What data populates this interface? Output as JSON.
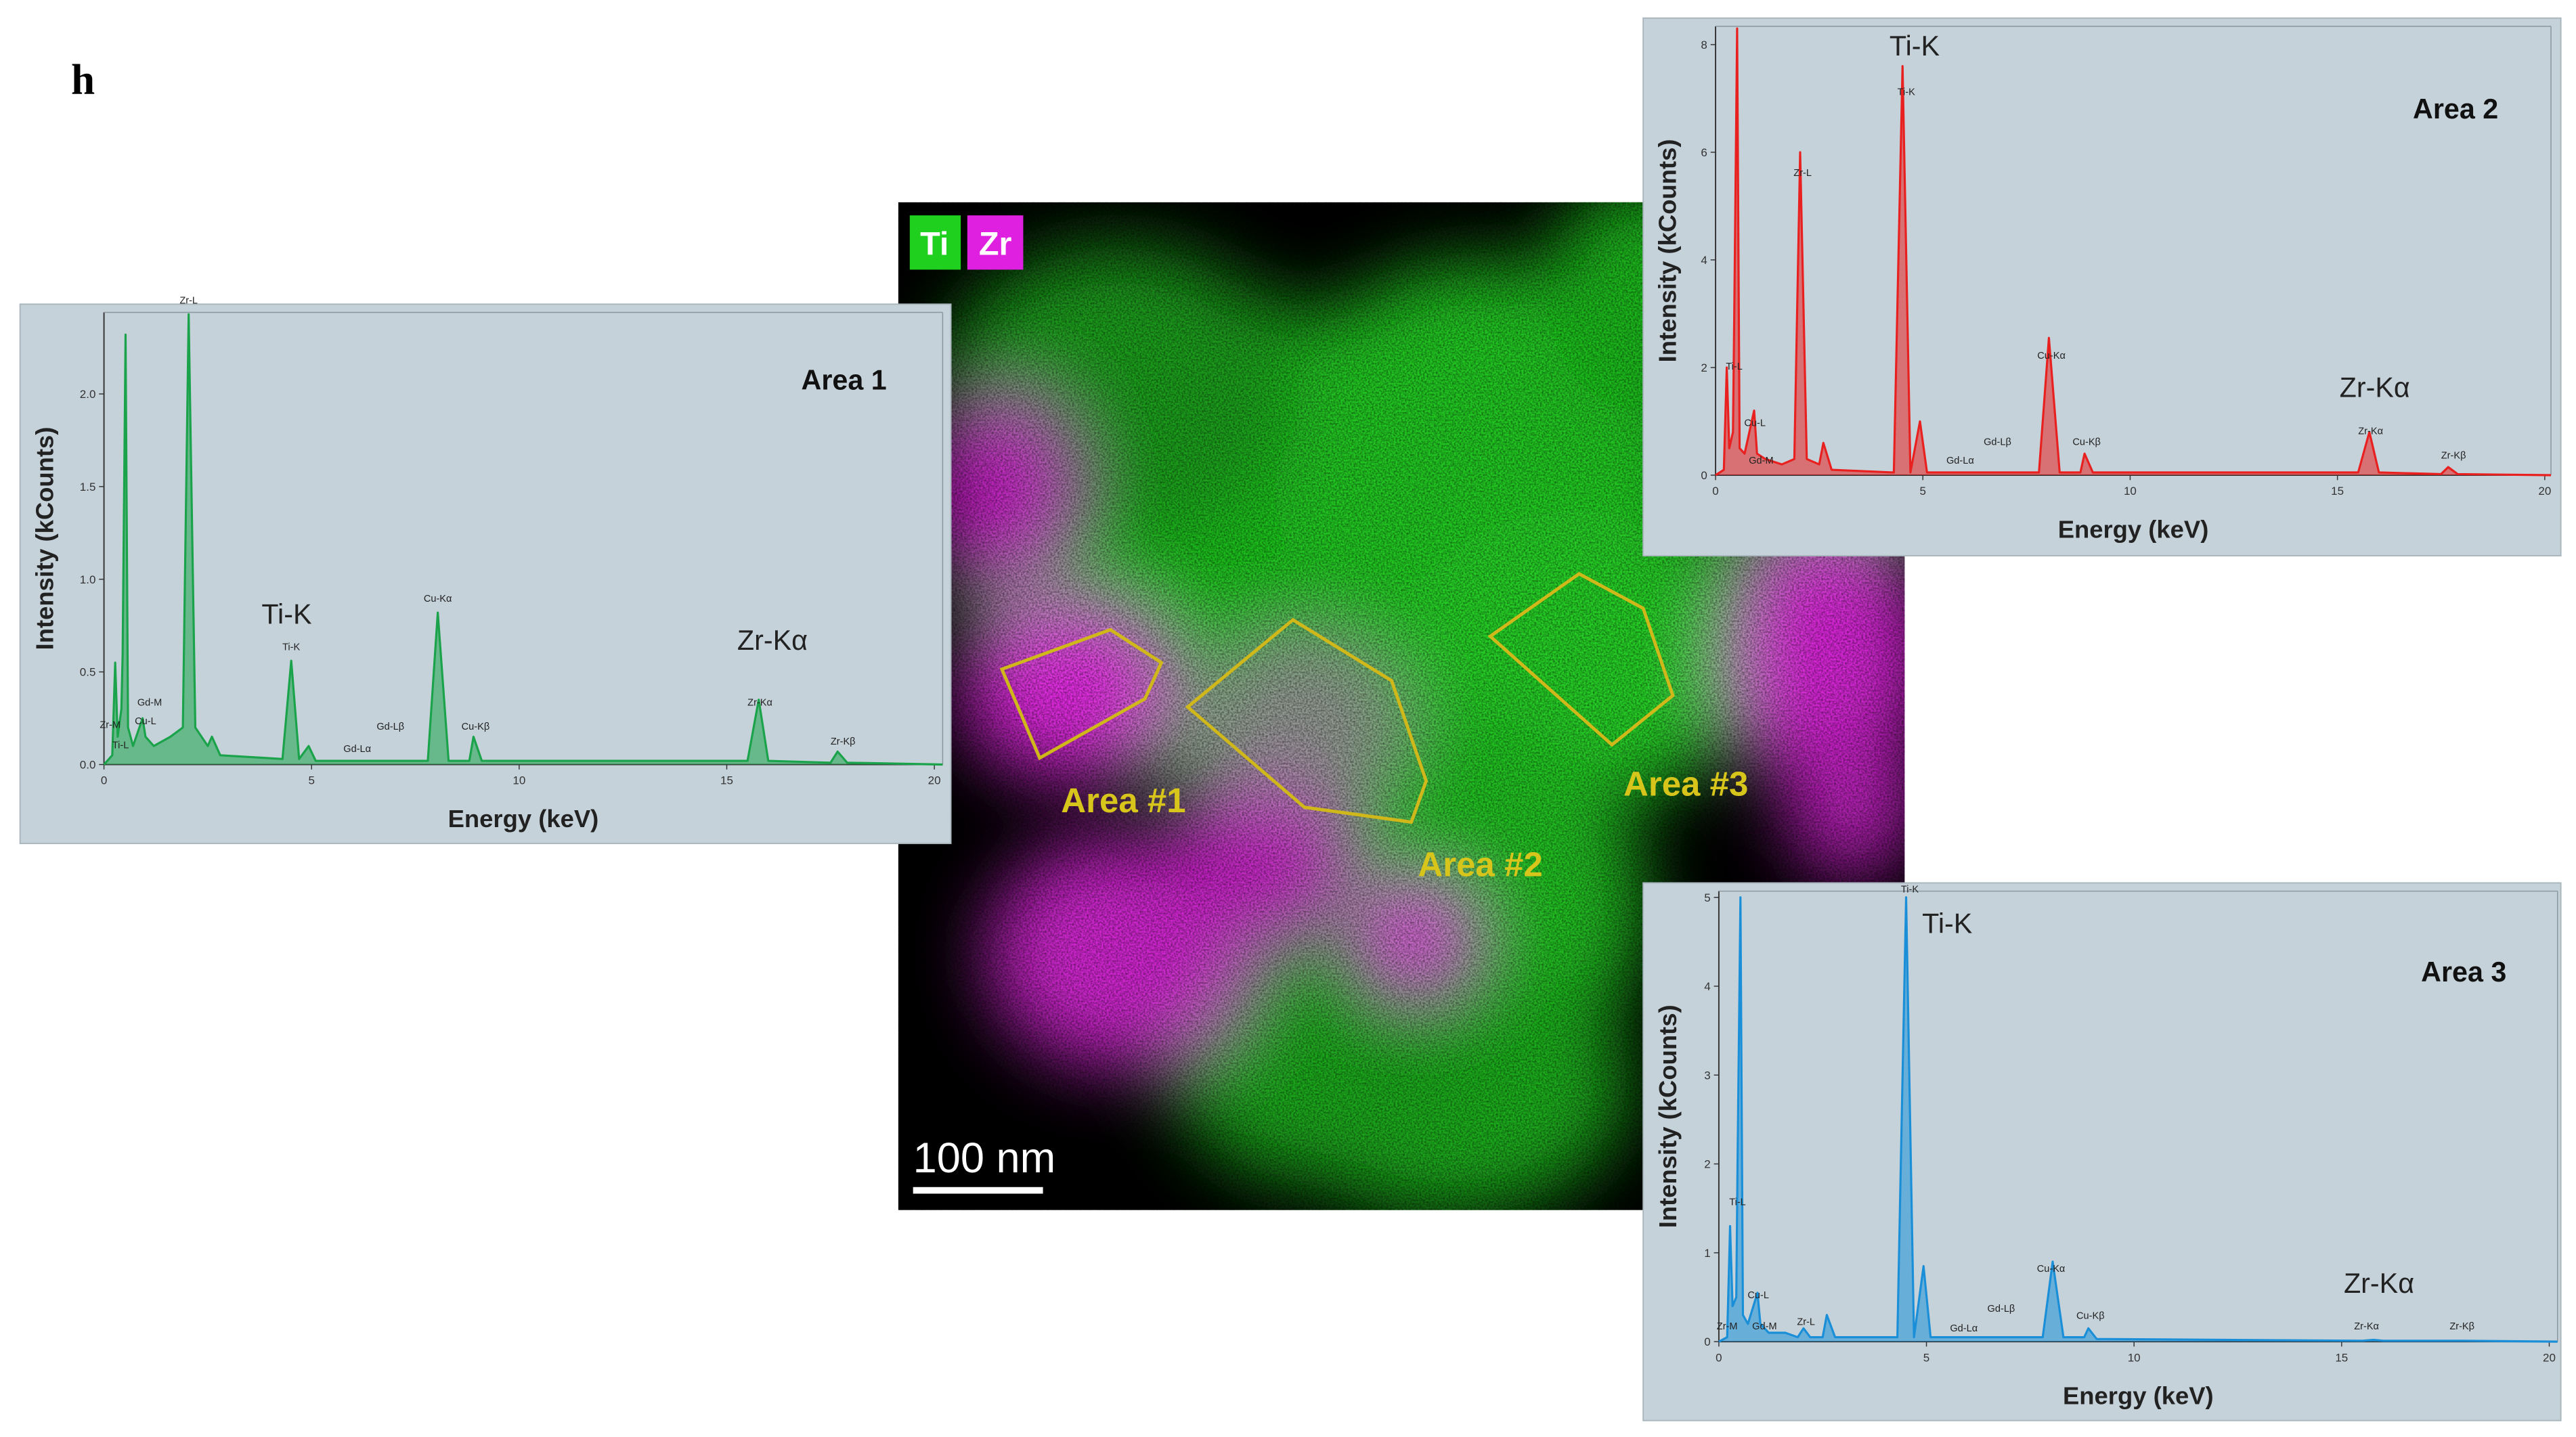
{
  "panel_label": "h",
  "map": {
    "legend": [
      "Ti",
      "Zr"
    ],
    "regions": [
      "Area #1",
      "Area #2",
      "Area #3"
    ],
    "scale_bar": "100 nm"
  },
  "chart_data": [
    {
      "type": "line",
      "title": "Area 1",
      "xlabel": "Energy (keV)",
      "ylabel": "Intensity (kCounts)",
      "color": "#1aa34a",
      "x": [
        0,
        0.2,
        0.27,
        0.33,
        0.42,
        0.45,
        0.52,
        0.58,
        0.7,
        0.93,
        1.0,
        1.2,
        1.6,
        1.9,
        2.04,
        2.2,
        2.5,
        2.6,
        2.8,
        4.3,
        4.51,
        4.7,
        4.93,
        5.1,
        7.8,
        8.04,
        8.3,
        8.8,
        8.9,
        9.1,
        15.5,
        15.77,
        16.0,
        17.5,
        17.67,
        17.9,
        20.2
      ],
      "values": [
        0,
        0.05,
        0.55,
        0.15,
        0.3,
        0.6,
        2.32,
        0.2,
        0.1,
        0.25,
        0.15,
        0.1,
        0.15,
        0.2,
        2.43,
        0.2,
        0.1,
        0.15,
        0.05,
        0.03,
        0.56,
        0.03,
        0.1,
        0.02,
        0.02,
        0.82,
        0.02,
        0.02,
        0.15,
        0.02,
        0.02,
        0.35,
        0.02,
        0.01,
        0.07,
        0.01,
        0
      ],
      "xlim": [
        0,
        20.2
      ],
      "xticks": [
        0,
        5,
        10,
        15,
        20
      ],
      "ylim": [
        0,
        2.44
      ],
      "yticks": [
        {
          "value": 0,
          "label": "0.0"
        },
        {
          "value": 0.5,
          "label": "0.5"
        },
        {
          "value": 1,
          "label": "1.0"
        },
        {
          "value": 1.5,
          "label": "1.5"
        },
        {
          "value": 2,
          "label": "2.0"
        }
      ],
      "annotations": [
        "Zr-L",
        "Ti-K",
        "Cu-Kα",
        "Gd-Lβ",
        "Gd-Lα",
        "Cu-Kβ",
        "Zr-Kα",
        "Zr-Kβ",
        "Gd-M",
        "Cu-L",
        "Ti-L",
        "Zr-M"
      ],
      "callouts": [
        "Ti-K",
        "Zr-Kα"
      ]
    },
    {
      "type": "line",
      "title": "Area 2",
      "xlabel": "Energy (keV)",
      "ylabel": "Intensity (kCounts)",
      "color": "#e8201f",
      "x": [
        0,
        0.2,
        0.27,
        0.33,
        0.42,
        0.45,
        0.52,
        0.58,
        0.7,
        0.93,
        1.0,
        1.2,
        1.6,
        1.9,
        2.04,
        2.2,
        2.5,
        2.6,
        2.8,
        4.3,
        4.51,
        4.7,
        4.93,
        5.1,
        7.8,
        8.04,
        8.3,
        8.8,
        8.9,
        9.1,
        15.5,
        15.77,
        16.0,
        17.5,
        17.67,
        17.9,
        20.15
      ],
      "values": [
        0,
        0.1,
        2.0,
        0.5,
        0.8,
        2.9,
        8.3,
        0.5,
        0.4,
        1.2,
        0.4,
        0.3,
        0.2,
        0.3,
        6.0,
        0.3,
        0.2,
        0.6,
        0.1,
        0.05,
        7.6,
        0.05,
        1.0,
        0.05,
        0.05,
        2.55,
        0.05,
        0.05,
        0.4,
        0.05,
        0.05,
        0.8,
        0.05,
        0.02,
        0.15,
        0.02,
        0
      ],
      "xlim": [
        0,
        20.15
      ],
      "xticks": [
        0,
        5,
        10,
        15,
        20
      ],
      "ylim": [
        0,
        8.34
      ],
      "yticks": [
        0,
        2,
        4,
        6,
        8
      ],
      "annotations": [
        "Ti-K",
        "Zr-L",
        "Ti-L",
        "Cu-L",
        "Gd-M",
        "Cu-Kα",
        "Gd-Lβ",
        "Gd-Lα",
        "Cu-Kβ",
        "Zr-Kα",
        "Zr-Kβ"
      ],
      "callouts": [
        "Ti-K",
        "Zr-Kα"
      ]
    },
    {
      "type": "line",
      "title": "Area 3",
      "xlabel": "Energy (keV)",
      "ylabel": "Intensity (kCounts)",
      "color": "#1a8fd8",
      "x": [
        0,
        0.2,
        0.27,
        0.33,
        0.42,
        0.45,
        0.52,
        0.58,
        0.7,
        0.93,
        1.0,
        1.2,
        1.6,
        1.9,
        2.04,
        2.2,
        2.5,
        2.6,
        2.8,
        4.3,
        4.51,
        4.7,
        4.93,
        5.1,
        7.8,
        8.04,
        8.3,
        8.8,
        8.9,
        9.1,
        15.5,
        15.77,
        16.0,
        17.5,
        17.67,
        17.9,
        20.2
      ],
      "values": [
        0,
        0.05,
        1.3,
        0.4,
        0.5,
        2.0,
        5.0,
        0.3,
        0.2,
        0.55,
        0.2,
        0.1,
        0.1,
        0.05,
        0.15,
        0.05,
        0.05,
        0.3,
        0.05,
        0.05,
        5.0,
        0.05,
        0.85,
        0.05,
        0.05,
        0.9,
        0.05,
        0.05,
        0.15,
        0.03,
        0.01,
        0.02,
        0.01,
        0.01,
        0.01,
        0.01,
        0
      ],
      "xlim": [
        0,
        20.2
      ],
      "xticks": [
        0,
        5,
        10,
        15,
        20
      ],
      "ylim": [
        0,
        5.07
      ],
      "yticks": [
        0,
        1,
        2,
        3,
        4,
        5
      ],
      "annotations": [
        "Ti-K",
        "Ti-L",
        "Cu-L",
        "Gd-M",
        "Zr-M",
        "Zr-L",
        "Cu-Kα",
        "Gd-Lβ",
        "Gd-Lα",
        "Cu-Kβ",
        "Zr-Kα",
        "Zr-Kβ"
      ],
      "callouts": [
        "Ti-K",
        "Zr-Kα"
      ]
    }
  ]
}
